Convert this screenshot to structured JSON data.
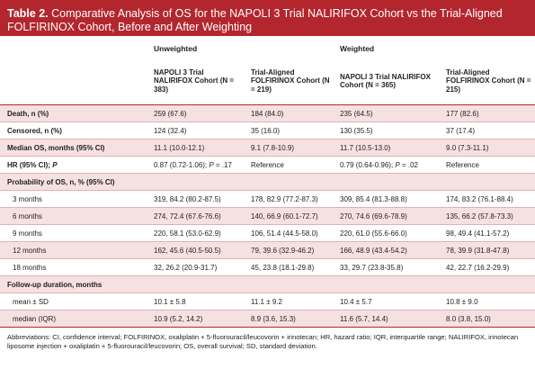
{
  "title": {
    "number": "Table 2.",
    "text": "Comparative Analysis of OS for the NAPOLI 3 Trial NALIRIFOX Cohort vs the Trial-Aligned FOLFIRINOX Cohort, Before and After Weighting"
  },
  "groups": {
    "unweighted": "Unweighted",
    "weighted": "Weighted"
  },
  "columns": {
    "u_napoli": "NAPOLI 3 Trial NALIRIFOX Cohort (N = 383)",
    "u_folfirinox": "Trial-Aligned FOLFIRINOX Cohort (N = 219)",
    "w_napoli": "NAPOLI 3 Trial NALIRIFOX Cohort (N = 365)",
    "w_folfirinox": "Trial-Aligned FOLFIRINOX Cohort (N = 215)"
  },
  "rows": [
    {
      "label": "Death, n (%)",
      "cells": [
        "259 (67.6)",
        "184 (84.0)",
        "235 (64.5)",
        "177 (82.6)"
      ]
    },
    {
      "label": "Censored, n (%)",
      "cells": [
        "124 (32.4)",
        "35 (16.0)",
        "130 (35.5)",
        "37 (17.4)"
      ]
    },
    {
      "label": "Median OS, months (95% CI)",
      "cells": [
        "11.1 (10.0-12.1)",
        "9.1 (7.8-10.9)",
        "11.7 (10.5-13.0)",
        "9.0 (7.3-11.1)"
      ]
    },
    {
      "label": "HR (95% CI); P",
      "cells": [
        "0.87 (0.72-1.06); P = .17",
        "Reference",
        "0.79 (0.64-0.96); P = .02",
        "Reference"
      ]
    },
    {
      "label": "Probability of OS, n, % (95% CI)",
      "cells": [
        "",
        "",
        "",
        ""
      ]
    },
    {
      "label": "3 months",
      "cells": [
        "319, 84.2 (80.2-87.5)",
        "178, 82.9 (77.2-87.3)",
        "309, 85.4 (81.3-88.8)",
        "174, 83.2 (76.1-88.4)"
      ]
    },
    {
      "label": "6 months",
      "cells": [
        "274, 72.4 (67.6-76.6)",
        "140, 66.9 (60.1-72.7)",
        "270, 74.6 (69.6-78.9)",
        "135, 66.2 (57.8-73.3)"
      ]
    },
    {
      "label": "9 months",
      "cells": [
        "220, 58.1 (53.0-62.9)",
        "106, 51.4 (44.5-58.0)",
        "220, 61.0 (55.6-66.0)",
        "98, 49.4 (41.1-57.2)"
      ]
    },
    {
      "label": "12 months",
      "cells": [
        "162, 45.6 (40.5-50.5)",
        "79, 39.6 (32.9-46.2)",
        "166, 48.9 (43.4-54.2)",
        "78, 39.9 (31.8-47.8)"
      ]
    },
    {
      "label": "18 months",
      "cells": [
        "32, 26.2 (20.9-31.7)",
        "45, 23.8 (18.1-29.8)",
        "33, 29.7 (23.8-35.8)",
        "42, 22.7 (16.2-29.9)"
      ]
    },
    {
      "label": "Follow-up duration, months",
      "cells": [
        "",
        "",
        "",
        ""
      ]
    },
    {
      "label": "mean ± SD",
      "cells": [
        "10.1 ± 5.8",
        "11.1 ± 9.2",
        "10.4 ± 5.7",
        "10.8 ± 9.0"
      ]
    },
    {
      "label": "median (IQR)",
      "cells": [
        "10.9 (5.2, 14.2)",
        "8.9 (3.6, 15.3)",
        "11.6 (5.7, 14.4)",
        "8.0 (3.8, 15.0)"
      ]
    }
  ],
  "footnote": "Abbreviations: CI, confidence interval; FOLFIRINOX, oxaliplatin + 5-fluorouracil/leucovorin + irinotecan; HR, hazard ratio; IQR, interquartile range; NALIRIFOX, irinotecan liposome injection + oxaliplatin + 5-fluorouracil/leucovorin; OS, overall survival; SD, standard deviation.",
  "colors": {
    "accent": "#b3262e",
    "shade": "#f6e1e2",
    "rule": "#e3b0b3"
  }
}
